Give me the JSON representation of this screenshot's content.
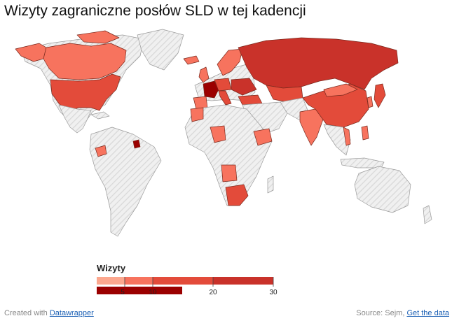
{
  "header": {
    "title": "Wizyty zagraniczne posłów SLD w tej kadencji"
  },
  "legend": {
    "title": "Wizyty",
    "ticks": [
      "5",
      "10",
      "20",
      "30"
    ],
    "colors": [
      "#fca78e",
      "#f7735e",
      "#e34b3a",
      "#c9322a",
      "#9b0000"
    ]
  },
  "footer": {
    "created_prefix": "Created with",
    "created_link": "Datawrapper",
    "source_prefix": "Source: Sejm,",
    "source_link": "Get the data"
  },
  "map": {
    "no_data_pattern": "hatched-gray",
    "countries": [
      {
        "name": "Canada",
        "level": 1
      },
      {
        "name": "United States",
        "level": 2
      },
      {
        "name": "Greenland",
        "level": 0
      },
      {
        "name": "Russia",
        "level": 4
      },
      {
        "name": "China",
        "level": 2
      },
      {
        "name": "France",
        "level": 5
      },
      {
        "name": "French Guiana",
        "level": 5
      },
      {
        "name": "South Africa",
        "level": 2
      },
      {
        "name": "Angola",
        "level": 1
      },
      {
        "name": "Nigeria",
        "level": 1
      },
      {
        "name": "Ethiopia",
        "level": 1
      },
      {
        "name": "Kazakhstan",
        "level": 2
      },
      {
        "name": "India",
        "level": 1
      },
      {
        "name": "Japan",
        "level": 2
      },
      {
        "name": "Vietnam",
        "level": 1
      },
      {
        "name": "Ecuador",
        "level": 1
      }
    ]
  }
}
